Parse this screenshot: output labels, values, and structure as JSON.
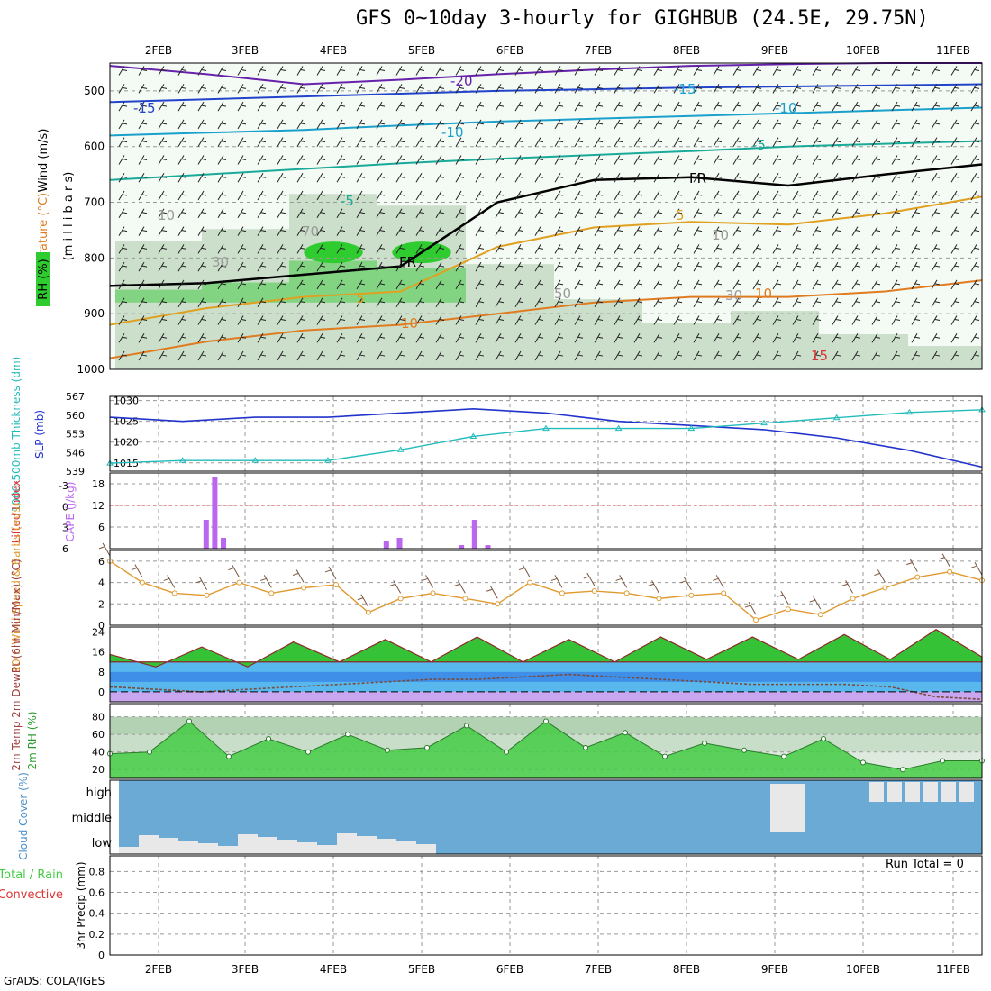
{
  "title": "GFS 0~10day 3-hourly for GIGHBUB (24.5E, 29.75N)",
  "credit": "GrADS: COLA/IGES",
  "run_total": "Run Total = 0",
  "colors": {
    "rh_fill": "#2ecc2e",
    "temp_contour": "#e07b20",
    "freezing": "#000000",
    "slp": "#2233cc",
    "thickness": "#22bbbb",
    "cape": "#bb66ee",
    "lifted_index": "#dd3333",
    "wind10": "#e09a30",
    "temp2m": "#22aa22",
    "rh2m": "#44cc44",
    "cloud": "#6aaad4",
    "cloud_clear": "#e8e8e8"
  },
  "chart_data": [
    {
      "type": "contour",
      "panel": "upper-air",
      "ylabel": "(m i l l i b a r s)",
      "legend_labels": [
        "Wind (m/s)",
        "Temperature (°C)",
        "RH (%)"
      ],
      "yticks": [
        500,
        600,
        700,
        800,
        900,
        1000
      ],
      "ylim": [
        450,
        1000
      ],
      "x_dates": [
        "2FEB",
        "3FEB",
        "4FEB",
        "5FEB",
        "6FEB",
        "7FEB",
        "8FEB",
        "9FEB",
        "10FEB",
        "11FEB"
      ],
      "contour_labels": [
        "-20",
        "-15",
        "-15",
        "-10",
        "-10",
        "-5",
        "-5",
        "FR",
        "FR",
        "5",
        "5",
        "10",
        "10",
        "15",
        "10",
        "10",
        "30",
        "30",
        "50",
        "70"
      ],
      "isotherms": [
        {
          "label": "-20",
          "hPa": [
            455,
            470,
            488,
            480,
            470,
            462,
            455,
            452,
            450,
            450
          ]
        },
        {
          "label": "-15",
          "hPa": [
            520,
            515,
            510,
            505,
            500,
            497,
            494,
            492,
            490,
            488
          ]
        },
        {
          "label": "-10",
          "hPa": [
            580,
            575,
            570,
            562,
            555,
            550,
            545,
            540,
            535,
            530
          ]
        },
        {
          "label": "-5",
          "hPa": [
            660,
            650,
            640,
            630,
            622,
            615,
            608,
            600,
            595,
            590
          ]
        },
        {
          "label": "FR",
          "hPa": [
            850,
            845,
            830,
            815,
            700,
            660,
            655,
            670,
            650,
            632
          ]
        },
        {
          "label": "5",
          "hPa": [
            920,
            890,
            870,
            860,
            780,
            745,
            735,
            740,
            720,
            690
          ]
        },
        {
          "label": "10",
          "hPa": [
            980,
            950,
            930,
            920,
            900,
            880,
            870,
            870,
            860,
            840
          ]
        }
      ],
      "rh_mean_percent": [
        55,
        60,
        75,
        70,
        45,
        30,
        20,
        25,
        15,
        10
      ]
    },
    {
      "type": "line",
      "panel": "slp-thickness",
      "ylabel": "SLP (mb)",
      "ylabel2": "1000-500mb Thickness (dm)",
      "yticks": [
        1015,
        1020,
        1025,
        1030
      ],
      "yticks2": [
        539,
        546,
        553,
        560,
        567
      ],
      "series": [
        {
          "name": "SLP (mb)",
          "values": [
            1026,
            1025,
            1026,
            1026,
            1027,
            1028,
            1027,
            1025,
            1024,
            1023,
            1021,
            1018,
            1014
          ]
        },
        {
          "name": "Thickness (dm)",
          "values": [
            542,
            543,
            543,
            543,
            547,
            552,
            555,
            555,
            555,
            557,
            559,
            561,
            562
          ]
        }
      ]
    },
    {
      "type": "bar",
      "panel": "cape-li",
      "ylabel": "CAPE (J/kg)",
      "ylabel2": "Lifted Index",
      "yticks": [
        6,
        12,
        18
      ],
      "yticks2": [
        -3,
        0,
        3,
        6
      ],
      "series": [
        {
          "name": "CAPE (J/kg)",
          "x": [
            1.55,
            1.65,
            1.75,
            3.6,
            3.75,
            4.45,
            4.6,
            4.75
          ],
          "values": [
            8,
            20,
            3,
            2,
            3,
            1,
            8,
            1
          ]
        }
      ]
    },
    {
      "type": "line",
      "panel": "wind10m",
      "ylabel": "10m Wind Speed & Barbs (m/s)",
      "yticks": [
        0,
        2,
        4,
        6
      ],
      "series": [
        {
          "name": "10m Wind Speed (m/s)",
          "values": [
            6,
            4,
            3,
            2.8,
            4,
            3,
            3.5,
            3.8,
            1.2,
            2.5,
            3,
            2.5,
            2,
            4,
            3,
            3.2,
            3,
            2.5,
            2.8,
            3,
            0.5,
            1.5,
            1,
            2.5,
            3.5,
            4.5,
            5,
            4.2
          ]
        }
      ]
    },
    {
      "type": "area",
      "panel": "temp2m",
      "ylabel": "2m Temp 2m DewPt (6hr Min/Max) (°C)",
      "yticks": [
        0,
        8,
        16,
        24
      ],
      "series": [
        {
          "name": "2m Temp (°C)",
          "values": [
            15,
            10,
            18,
            10,
            20,
            12,
            21,
            12,
            22,
            12,
            21,
            12,
            22,
            13,
            22,
            13,
            23,
            13,
            25,
            14
          ]
        },
        {
          "name": "2m DewPt (°C)",
          "values": [
            2,
            1,
            0,
            1,
            2,
            3,
            4,
            5,
            5,
            6,
            7,
            6,
            5,
            4,
            3,
            3,
            3,
            2,
            -2,
            -3
          ]
        }
      ]
    },
    {
      "type": "area",
      "panel": "rh2m",
      "ylabel": "2m RH (%)",
      "yticks": [
        20,
        40,
        60,
        80
      ],
      "series": [
        {
          "name": "2m RH (%)",
          "values": [
            38,
            40,
            75,
            35,
            55,
            40,
            60,
            42,
            45,
            70,
            40,
            75,
            45,
            62,
            35,
            50,
            42,
            35,
            55,
            28,
            20,
            30,
            30
          ]
        }
      ]
    },
    {
      "type": "heatmap",
      "panel": "cloud",
      "ylabel": "Cloud Cover (%)",
      "levels": [
        "high",
        "middle",
        "low"
      ]
    },
    {
      "type": "bar",
      "panel": "precip",
      "ylabel": "3hr Precip (mm)",
      "legend_labels": [
        "Total / Rain",
        "Convective"
      ],
      "yticks": [
        0,
        0.2,
        0.4,
        0.6,
        0.8
      ],
      "values": []
    }
  ]
}
